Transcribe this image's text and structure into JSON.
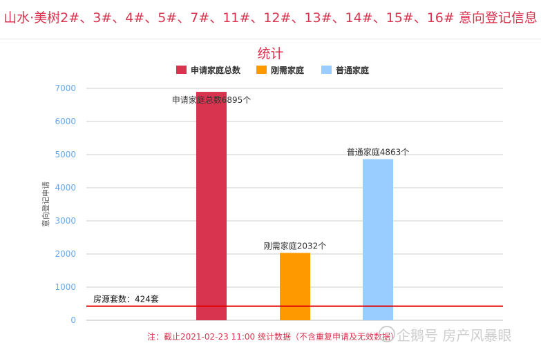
{
  "chart_data": {
    "type": "bar",
    "title": "山水·美树2#、3#、4#、5#、7#、11#、12#、13#、14#、15#、16# 意向登记信息统计",
    "ylabel": "意向登记申请",
    "ylim": [
      0,
      7000
    ],
    "yticks": [
      0,
      1000,
      2000,
      3000,
      4000,
      5000,
      6000,
      7000
    ],
    "grid": true,
    "legend_position": "top",
    "series": [
      {
        "name": "申请家庭总数",
        "value": 6895,
        "label": "申请家庭总数6895个",
        "color": "#d9344f"
      },
      {
        "name": "刚需家庭",
        "value": 2032,
        "label": "刚需家庭2032个",
        "color": "#ff9900"
      },
      {
        "name": "普通家庭",
        "value": 4863,
        "label": "普通家庭4863个",
        "color": "#99ccff"
      }
    ],
    "reference_line": {
      "value": 424,
      "label": "房源套数：424套",
      "color": "#e00000"
    },
    "note": "注：截止2021-02-23 11:00 统计数据（不含重复申请及无效数据）"
  },
  "watermark": "企鹅号 房产风暴眼"
}
